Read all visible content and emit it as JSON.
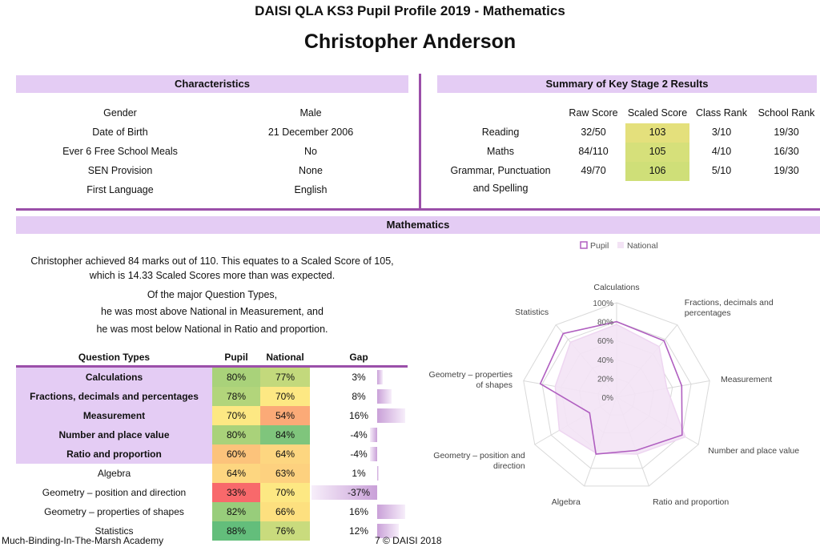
{
  "header": {
    "title": "DAISI QLA KS3 Pupil Profile 2019 - Mathematics",
    "pupil_name": "Christopher Anderson"
  },
  "characteristics": {
    "heading": "Characteristics",
    "rows": [
      {
        "label": "Gender",
        "value": "Male"
      },
      {
        "label": "Date of Birth",
        "value": "21 December 2006"
      },
      {
        "label": "Ever 6 Free School Meals",
        "value": "No"
      },
      {
        "label": "SEN Provision",
        "value": "None"
      },
      {
        "label": "First Language",
        "value": "English"
      }
    ]
  },
  "ks2": {
    "heading": "Summary of Key Stage 2 Results",
    "columns": [
      "Raw Score",
      "Scaled Score",
      "Class Rank",
      "School Rank"
    ],
    "rows": [
      {
        "subject": "Reading",
        "subject2": "",
        "raw": "32/50",
        "scaled": "103",
        "class_rank": "3/10",
        "school_rank": "19/30",
        "color": "#e4e07c"
      },
      {
        "subject": "Maths",
        "subject2": "",
        "raw": "84/110",
        "scaled": "105",
        "class_rank": "4/10",
        "school_rank": "16/30",
        "color": "#d6e07a"
      },
      {
        "subject": "Grammar, Punctuation",
        "subject2": "and Spelling",
        "raw": "49/70",
        "scaled": "106",
        "class_rank": "5/10",
        "school_rank": "19/30",
        "color": "#cfdf78"
      }
    ]
  },
  "maths": {
    "heading": "Mathematics",
    "summary_lines": [
      "Christopher achieved 84 marks out of 110. This equates to a Scaled Score of 105,",
      "which is 14.33 Scaled Scores more than was expected.",
      "Of the major Question Types,",
      "he was most above National in Measurement, and",
      "he was most below National in Ratio and proportion."
    ],
    "table_headers": {
      "type": "Question Types",
      "pupil": "Pupil",
      "national": "National",
      "gap": "Gap"
    },
    "rows": [
      {
        "type": "Calculations",
        "pupil": "80%",
        "national": "77%",
        "gap": "3%",
        "major": true,
        "pupil_color": "#a9d27a",
        "national_color": "#c3d97c",
        "gap_value": 3
      },
      {
        "type": "Fractions, decimals and percentages",
        "pupil": "78%",
        "national": "70%",
        "gap": "8%",
        "major": true,
        "pupil_color": "#b2d57b",
        "national_color": "#fde883",
        "gap_value": 8
      },
      {
        "type": "Measurement",
        "pupil": "70%",
        "national": "54%",
        "gap": "16%",
        "major": true,
        "pupil_color": "#fde883",
        "national_color": "#fbaa77",
        "gap_value": 16
      },
      {
        "type": "Number and place value",
        "pupil": "80%",
        "national": "84%",
        "gap": "-4%",
        "major": true,
        "pupil_color": "#a9d27a",
        "national_color": "#7fc57c",
        "gap_value": -4
      },
      {
        "type": "Ratio and proportion",
        "pupil": "60%",
        "national": "64%",
        "gap": "-4%",
        "major": true,
        "pupil_color": "#fcc37b",
        "national_color": "#fdd680",
        "gap_value": -4
      },
      {
        "type": "Algebra",
        "pupil": "64%",
        "national": "63%",
        "gap": "1%",
        "major": false,
        "pupil_color": "#fdd680",
        "national_color": "#fdd17f",
        "gap_value": 1
      },
      {
        "type": "Geometry – position and direction",
        "pupil": "33%",
        "national": "70%",
        "gap": "-37%",
        "major": false,
        "pupil_color": "#f8696b",
        "national_color": "#fde883",
        "gap_value": -37
      },
      {
        "type": "Geometry – properties of shapes",
        "pupil": "82%",
        "national": "66%",
        "gap": "16%",
        "major": false,
        "pupil_color": "#98cd7b",
        "national_color": "#fde07f",
        "gap_value": 16
      },
      {
        "type": "Statistics",
        "pupil": "88%",
        "national": "76%",
        "gap": "12%",
        "major": false,
        "pupil_color": "#63be7b",
        "national_color": "#c9db7d",
        "gap_value": 12
      }
    ]
  },
  "chart_data": {
    "type": "radar",
    "categories": [
      "Calculations",
      "Fractions, decimals and percentages",
      "Measurement",
      "Number and place value",
      "Ratio and proportion",
      "Algebra",
      "Geometry – position and direction",
      "Geometry – properties of shapes",
      "Statistics"
    ],
    "series": [
      {
        "name": "Pupil",
        "values": [
          80,
          78,
          70,
          80,
          60,
          64,
          33,
          82,
          88
        ],
        "color": "#b05fc0"
      },
      {
        "name": "National",
        "values": [
          77,
          70,
          54,
          84,
          64,
          63,
          70,
          66,
          76
        ],
        "color": "#f3e3f5"
      }
    ],
    "ticks": [
      "0%",
      "20%",
      "40%",
      "60%",
      "80%",
      "100%"
    ],
    "rlim": [
      0,
      100
    ],
    "legend_position": "top"
  },
  "footer": {
    "school": "Much-Binding-In-The-Marsh Academy",
    "page": "7 © DAISI 2018"
  },
  "colors": {
    "accent": "#9b4fa9",
    "header_bg": "#e4ccf4"
  }
}
